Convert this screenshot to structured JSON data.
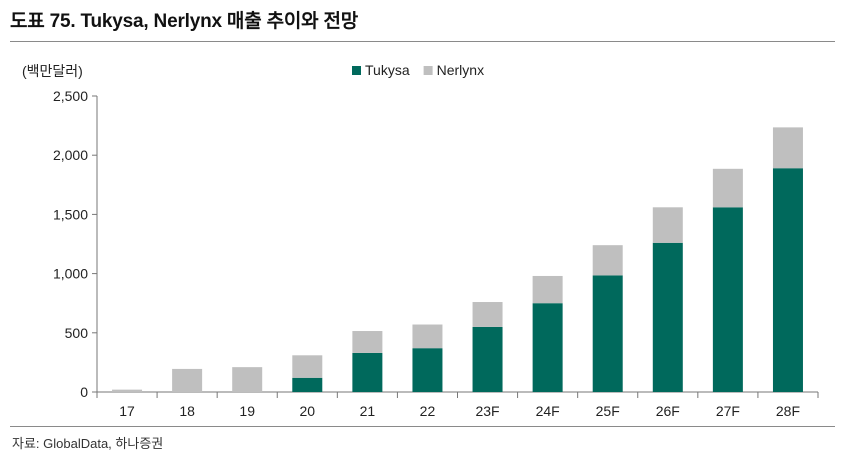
{
  "chart_data": {
    "type": "bar",
    "stacked": true,
    "title": "도표 75. Tukysa, Nerlynx 매출 추이와 전망",
    "ylabel": "(백만달러)",
    "xlabel": "",
    "categories": [
      "17",
      "18",
      "19",
      "20",
      "21",
      "22",
      "23F",
      "24F",
      "25F",
      "26F",
      "27F",
      "28F"
    ],
    "series": [
      {
        "name": "Tukysa",
        "color": "#00695c",
        "values": [
          0,
          0,
          0,
          120,
          330,
          370,
          550,
          750,
          985,
          1260,
          1560,
          1890
        ]
      },
      {
        "name": "Nerlynx",
        "color": "#bfbfbf",
        "values": [
          20,
          195,
          210,
          190,
          185,
          200,
          210,
          230,
          255,
          300,
          325,
          345
        ]
      }
    ],
    "ylim": [
      0,
      2500
    ],
    "yticks": [
      0,
      500,
      1000,
      1500,
      2000,
      2500
    ],
    "ytick_labels": [
      "0",
      "500",
      "1,000",
      "1,500",
      "2,000",
      "2,500"
    ],
    "legend_position": "top-center",
    "grid": false
  },
  "source": "자료: GlobalData, 하나증권"
}
